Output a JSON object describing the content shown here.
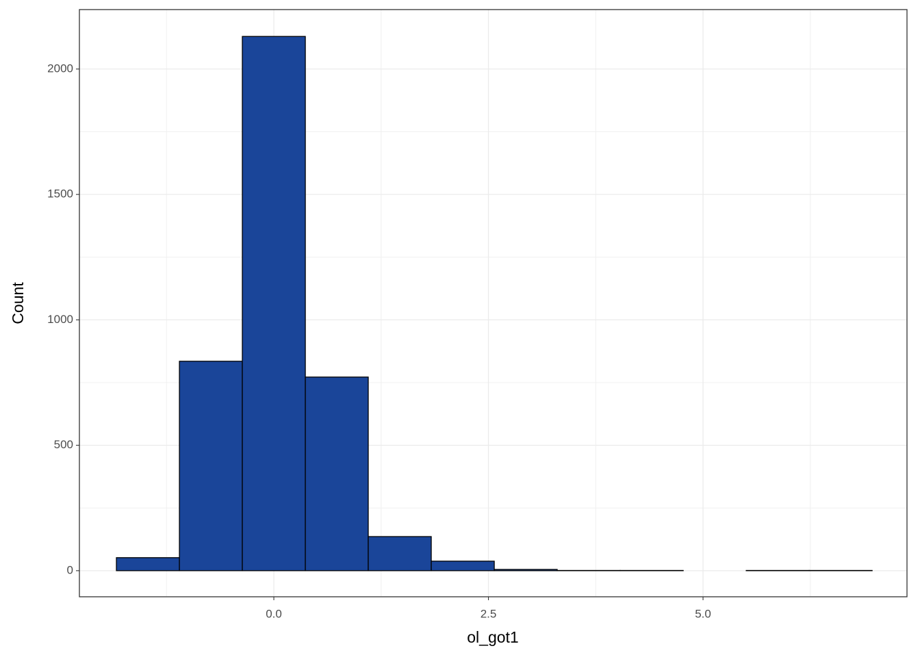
{
  "chart_data": {
    "type": "histogram",
    "x_label": "ol_got1",
    "y_label": "Count",
    "bins": [
      -1.834,
      -1.1,
      -0.367,
      0.367,
      1.1,
      1.834,
      2.568,
      3.301,
      4.035,
      4.769,
      5.503,
      6.236,
      6.97
    ],
    "values": [
      52,
      835,
      2130,
      772,
      136,
      38,
      5,
      1,
      1,
      0,
      1,
      1
    ],
    "color": "#1a4599",
    "edge_color": "#000000",
    "xlim": [
      -2.265,
      7.376
    ],
    "ylim": [
      -104,
      2237
    ],
    "xticks": [
      {
        "value": 0,
        "label": "0.0"
      },
      {
        "value": 2.5,
        "label": "2.5"
      },
      {
        "value": 5,
        "label": "5.0"
      }
    ],
    "yticks": [
      0,
      500,
      1000,
      1500,
      2000
    ],
    "grid": true
  }
}
